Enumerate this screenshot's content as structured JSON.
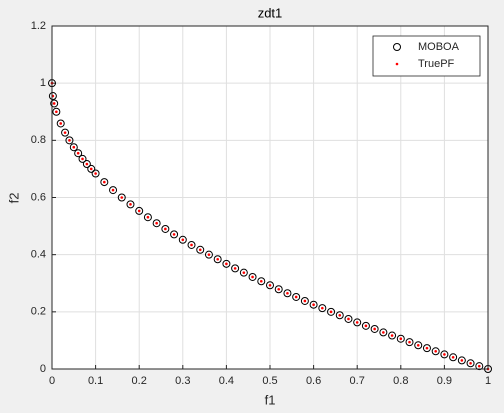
{
  "chart_data": {
    "type": "scatter",
    "title": "zdt1",
    "xlabel": "f1",
    "ylabel": "f2",
    "xlim": [
      0,
      1
    ],
    "ylim": [
      0,
      1.2
    ],
    "xticks": [
      0,
      0.1,
      0.2,
      0.3,
      0.4,
      0.5,
      0.6,
      0.7,
      0.8,
      0.9,
      1
    ],
    "yticks": [
      0,
      0.2,
      0.4,
      0.6,
      0.8,
      1,
      1.2
    ],
    "grid": true,
    "legend": "northeast",
    "series": [
      {
        "name": "MOBOA",
        "color": "#000000",
        "marker": "o",
        "x": [
          0,
          0.002,
          0.005,
          0.01,
          0.02,
          0.03,
          0.04,
          0.05,
          0.06,
          0.07,
          0.08,
          0.09,
          0.1,
          0.12,
          0.14,
          0.16,
          0.18,
          0.2,
          0.22,
          0.24,
          0.26,
          0.28,
          0.3,
          0.32,
          0.34,
          0.36,
          0.38,
          0.4,
          0.42,
          0.44,
          0.46,
          0.48,
          0.5,
          0.52,
          0.54,
          0.56,
          0.58,
          0.6,
          0.62,
          0.64,
          0.66,
          0.68,
          0.7,
          0.72,
          0.74,
          0.76,
          0.78,
          0.8,
          0.82,
          0.84,
          0.86,
          0.88,
          0.9,
          0.92,
          0.94,
          0.96,
          0.98,
          1
        ],
        "values": [
          1,
          0.955,
          0.929,
          0.9,
          0.859,
          0.827,
          0.8,
          0.776,
          0.755,
          0.735,
          0.717,
          0.7,
          0.684,
          0.654,
          0.626,
          0.6,
          0.576,
          0.553,
          0.531,
          0.51,
          0.49,
          0.471,
          0.452,
          0.434,
          0.417,
          0.4,
          0.384,
          0.368,
          0.352,
          0.337,
          0.322,
          0.307,
          0.293,
          0.279,
          0.265,
          0.252,
          0.238,
          0.225,
          0.213,
          0.2,
          0.188,
          0.175,
          0.163,
          0.151,
          0.14,
          0.128,
          0.117,
          0.106,
          0.094,
          0.083,
          0.073,
          0.062,
          0.051,
          0.041,
          0.03,
          0.02,
          0.01,
          0
        ]
      },
      {
        "name": "TruePF",
        "color": "#ff0000",
        "marker": ".",
        "x": [
          0,
          0.002,
          0.005,
          0.01,
          0.02,
          0.03,
          0.04,
          0.05,
          0.06,
          0.07,
          0.08,
          0.09,
          0.1,
          0.12,
          0.14,
          0.16,
          0.18,
          0.2,
          0.22,
          0.24,
          0.26,
          0.28,
          0.3,
          0.32,
          0.34,
          0.36,
          0.38,
          0.4,
          0.42,
          0.44,
          0.46,
          0.48,
          0.5,
          0.52,
          0.54,
          0.56,
          0.58,
          0.6,
          0.62,
          0.64,
          0.66,
          0.68,
          0.7,
          0.72,
          0.74,
          0.76,
          0.78,
          0.8,
          0.82,
          0.84,
          0.86,
          0.88,
          0.9,
          0.92,
          0.94,
          0.96,
          0.98,
          1
        ],
        "values": [
          1,
          0.955,
          0.929,
          0.9,
          0.859,
          0.827,
          0.8,
          0.776,
          0.755,
          0.735,
          0.717,
          0.7,
          0.684,
          0.654,
          0.626,
          0.6,
          0.576,
          0.553,
          0.531,
          0.51,
          0.49,
          0.471,
          0.452,
          0.434,
          0.417,
          0.4,
          0.384,
          0.368,
          0.352,
          0.337,
          0.322,
          0.307,
          0.293,
          0.279,
          0.265,
          0.252,
          0.238,
          0.225,
          0.213,
          0.2,
          0.188,
          0.175,
          0.163,
          0.151,
          0.14,
          0.128,
          0.117,
          0.106,
          0.094,
          0.083,
          0.073,
          0.062,
          0.051,
          0.041,
          0.03,
          0.02,
          0.01,
          0
        ]
      }
    ]
  }
}
